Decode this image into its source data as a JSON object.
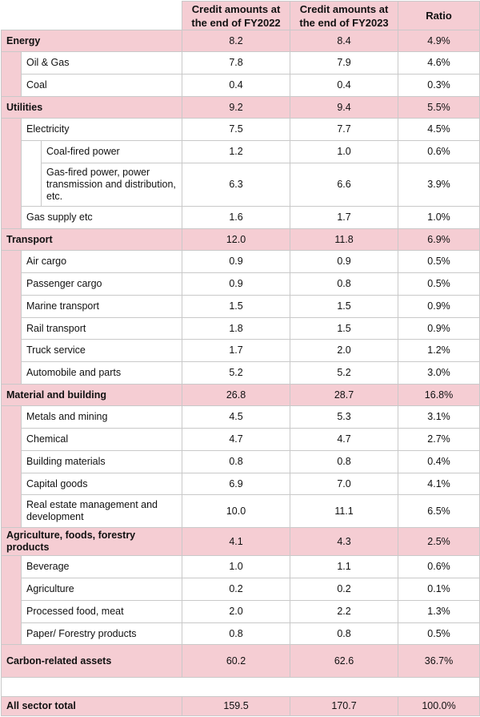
{
  "header": {
    "col_fy2022": "Credit amounts at the end of FY2022",
    "col_fy2023": "Credit amounts at the end of FY2023",
    "col_ratio": "Ratio"
  },
  "rows": [
    {
      "level": 0,
      "label": "Energy",
      "fy2022": "8.2",
      "fy2023": "8.4",
      "ratio": "4.9%"
    },
    {
      "level": 1,
      "label": "Oil & Gas",
      "fy2022": "7.8",
      "fy2023": "7.9",
      "ratio": "4.6%"
    },
    {
      "level": 1,
      "label": "Coal",
      "fy2022": "0.4",
      "fy2023": "0.4",
      "ratio": "0.3%"
    },
    {
      "level": 0,
      "label": "Utilities",
      "fy2022": "9.2",
      "fy2023": "9.4",
      "ratio": "5.5%"
    },
    {
      "level": 1,
      "label": "Electricity",
      "fy2022": "7.5",
      "fy2023": "7.7",
      "ratio": "4.5%"
    },
    {
      "level": 2,
      "label": "Coal-fired power",
      "fy2022": "1.2",
      "fy2023": "1.0",
      "ratio": "0.6%"
    },
    {
      "level": 2,
      "label": "Gas-fired power, power transmission and distribution, etc.",
      "fy2022": "6.3",
      "fy2023": "6.6",
      "ratio": "3.9%"
    },
    {
      "level": 1,
      "label": "Gas supply etc",
      "fy2022": "1.6",
      "fy2023": "1.7",
      "ratio": "1.0%"
    },
    {
      "level": 0,
      "label": "Transport",
      "fy2022": "12.0",
      "fy2023": "11.8",
      "ratio": "6.9%"
    },
    {
      "level": 1,
      "label": "Air cargo",
      "fy2022": "0.9",
      "fy2023": "0.9",
      "ratio": "0.5%"
    },
    {
      "level": 1,
      "label": "Passenger cargo",
      "fy2022": "0.9",
      "fy2023": "0.8",
      "ratio": "0.5%"
    },
    {
      "level": 1,
      "label": "Marine transport",
      "fy2022": "1.5",
      "fy2023": "1.5",
      "ratio": "0.9%"
    },
    {
      "level": 1,
      "label": "Rail transport",
      "fy2022": "1.8",
      "fy2023": "1.5",
      "ratio": "0.9%"
    },
    {
      "level": 1,
      "label": "Truck service",
      "fy2022": "1.7",
      "fy2023": "2.0",
      "ratio": "1.2%"
    },
    {
      "level": 1,
      "label": "Automobile and parts",
      "fy2022": "5.2",
      "fy2023": "5.2",
      "ratio": "3.0%"
    },
    {
      "level": 0,
      "label": "Material and building",
      "fy2022": "26.8",
      "fy2023": "28.7",
      "ratio": "16.8%"
    },
    {
      "level": 1,
      "label": "Metals and mining",
      "fy2022": "4.5",
      "fy2023": "5.3",
      "ratio": "3.1%"
    },
    {
      "level": 1,
      "label": "Chemical",
      "fy2022": "4.7",
      "fy2023": "4.7",
      "ratio": "2.7%"
    },
    {
      "level": 1,
      "label": "Building materials",
      "fy2022": "0.8",
      "fy2023": "0.8",
      "ratio": "0.4%"
    },
    {
      "level": 1,
      "label": "Capital goods",
      "fy2022": "6.9",
      "fy2023": "7.0",
      "ratio": "4.1%"
    },
    {
      "level": 1,
      "label": "Real estate management and development",
      "fy2022": "10.0",
      "fy2023": "11.1",
      "ratio": "6.5%"
    },
    {
      "level": 0,
      "label": "Agriculture, foods, forestry products",
      "fy2022": "4.1",
      "fy2023": "4.3",
      "ratio": "2.5%"
    },
    {
      "level": 1,
      "label": "Beverage",
      "fy2022": "1.0",
      "fy2023": "1.1",
      "ratio": "0.6%"
    },
    {
      "level": 1,
      "label": "Agriculture",
      "fy2022": "0.2",
      "fy2023": "0.2",
      "ratio": "0.1%"
    },
    {
      "level": 1,
      "label": "Processed food, meat",
      "fy2022": "2.0",
      "fy2023": "2.2",
      "ratio": "1.3%"
    },
    {
      "level": 1,
      "label": "Paper/ Forestry products",
      "fy2022": "0.8",
      "fy2023": "0.8",
      "ratio": "0.5%"
    }
  ],
  "carbon_total": {
    "label": "Carbon-related assets",
    "fy2022": "60.2",
    "fy2023": "62.6",
    "ratio": "36.7%"
  },
  "all_total": {
    "label": "All sector total",
    "fy2022": "159.5",
    "fy2023": "170.7",
    "ratio": "100.0%"
  },
  "colors": {
    "header_fill": "#f5cdd3",
    "border": "#c9c9c9"
  }
}
